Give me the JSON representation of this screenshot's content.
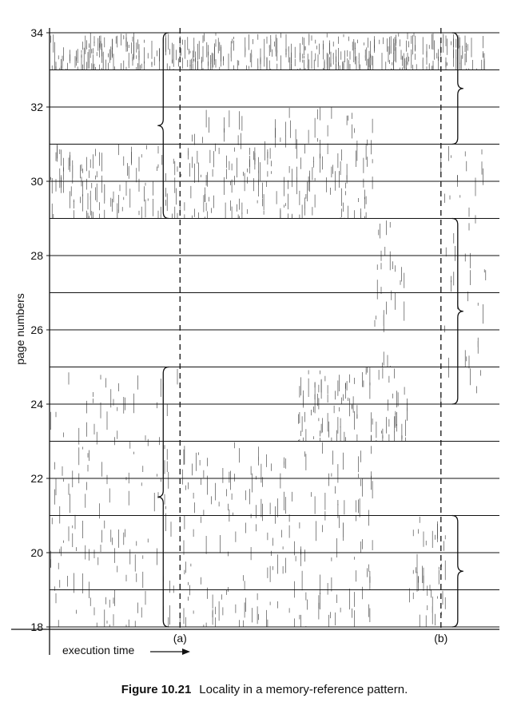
{
  "figure": {
    "number": "Figure 10.21",
    "caption": "Locality in a memory-reference pattern."
  },
  "chart_data": {
    "type": "scatter",
    "title": "",
    "ylabel": "page numbers",
    "xlabel": "execution time",
    "ylim": [
      18,
      34
    ],
    "yticks": [
      18,
      20,
      22,
      24,
      26,
      28,
      30,
      32,
      34
    ],
    "grid": "horizontal lines at every page number",
    "markers": [
      {
        "label": "(a)",
        "x": 0.29,
        "locality_pages": [
          [
            18,
            25
          ],
          [
            29,
            34
          ]
        ]
      },
      {
        "label": "(b)",
        "x": 0.87,
        "locality_pages": [
          [
            18,
            21
          ],
          [
            24,
            29
          ],
          [
            31,
            34
          ]
        ]
      }
    ],
    "reference_bands": [
      {
        "x": [
          0.0,
          0.3
        ],
        "y": [
          18,
          25
        ]
      },
      {
        "x": [
          0.0,
          0.3
        ],
        "y": [
          29,
          31
        ]
      },
      {
        "x": [
          0.0,
          0.97
        ],
        "y": [
          33,
          34
        ]
      },
      {
        "x": [
          0.3,
          0.72
        ],
        "y": [
          29,
          32
        ]
      },
      {
        "x": [
          0.3,
          0.72
        ],
        "y": [
          18,
          23
        ]
      },
      {
        "x": [
          0.55,
          0.8
        ],
        "y": [
          23,
          25
        ]
      },
      {
        "x": [
          0.72,
          0.8
        ],
        "y": [
          25,
          29
        ]
      },
      {
        "x": [
          0.8,
          0.88
        ],
        "y": [
          18,
          21
        ]
      },
      {
        "x": [
          0.87,
          0.97
        ],
        "y": [
          24,
          31
        ]
      }
    ]
  }
}
